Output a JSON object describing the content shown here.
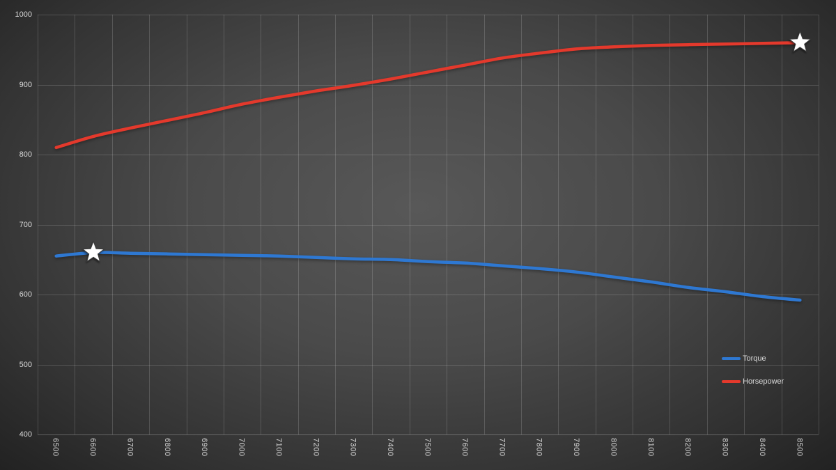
{
  "colors": {
    "background_center": "#585858",
    "background_edge": "#1e1e1e",
    "gridline": "rgba(255,255,255,0.16)",
    "axis_line": "rgba(255,255,255,0.26)",
    "axis_label": "#d9d9d9",
    "marker_fill": "#ffffff",
    "marker_outline": "#3a3a3a"
  },
  "chart_data": {
    "type": "line",
    "title": "",
    "xlabel": "",
    "ylabel": "",
    "x": [
      6500,
      6600,
      6700,
      6800,
      6900,
      7000,
      7100,
      7200,
      7300,
      7400,
      7500,
      7600,
      7700,
      7800,
      7900,
      8000,
      8100,
      8200,
      8300,
      8400,
      8500
    ],
    "ylim": [
      400,
      1000
    ],
    "y_ticks": [
      400,
      500,
      600,
      700,
      800,
      900,
      1000
    ],
    "grid": true,
    "legend_position": "inside-lower-right",
    "series": [
      {
        "name": "Torque",
        "color": "#2e78d2",
        "values": [
          655,
          660,
          659,
          658,
          657,
          656,
          655,
          653,
          651,
          650,
          647,
          645,
          641,
          637,
          632,
          625,
          618,
          610,
          604,
          597,
          592
        ],
        "peak_marker": {
          "shape": "star",
          "x": 6600,
          "value": 660
        }
      },
      {
        "name": "Horsepower",
        "color": "#e4392c",
        "values": [
          810,
          826,
          838,
          849,
          860,
          872,
          882,
          891,
          899,
          908,
          918,
          928,
          938,
          945,
          951,
          954,
          956,
          957,
          958,
          959,
          960
        ],
        "peak_marker": {
          "shape": "star",
          "x": 8500,
          "value": 960
        }
      }
    ]
  }
}
